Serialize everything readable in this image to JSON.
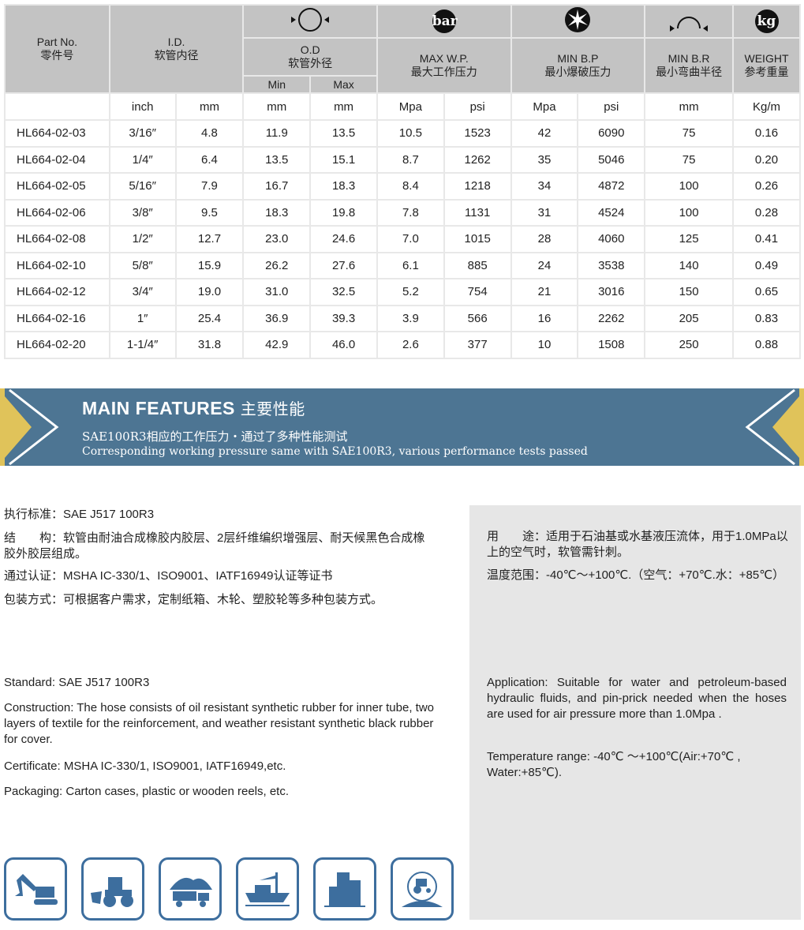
{
  "table": {
    "headers": {
      "part_no": "Part No.",
      "part_no_cn": "零件号",
      "id": "I.D.",
      "id_cn": "软管内径",
      "od": "O.D",
      "od_cn": "软管外径",
      "od_min": "Min",
      "od_max": "Max",
      "wp": "MAX W.P.",
      "wp_cn": "最大工作压力",
      "bp": "MIN B.P",
      "bp_cn": "最小爆破压力",
      "br": "MIN B.R",
      "br_cn": "最小弯曲半径",
      "weight": "WEIGHT",
      "weight_cn": "参考重量",
      "bar_icon_text": "bar",
      "kg_icon_text": "kg"
    },
    "units": [
      "",
      "inch",
      "mm",
      "mm",
      "mm",
      "Mpa",
      "psi",
      "Mpa",
      "psi",
      "mm",
      "Kg/m"
    ],
    "rows": [
      [
        "HL664-02-03",
        "3/16″",
        "4.8",
        "11.9",
        "13.5",
        "10.5",
        "1523",
        "42",
        "6090",
        "75",
        "0.16"
      ],
      [
        "HL664-02-04",
        "1/4″",
        "6.4",
        "13.5",
        "15.1",
        "8.7",
        "1262",
        "35",
        "5046",
        "75",
        "0.20"
      ],
      [
        "HL664-02-05",
        "5/16″",
        "7.9",
        "16.7",
        "18.3",
        "8.4",
        "1218",
        "34",
        "4872",
        "100",
        "0.26"
      ],
      [
        "HL664-02-06",
        "3/8″",
        "9.5",
        "18.3",
        "19.8",
        "7.8",
        "1131",
        "31",
        "4524",
        "100",
        "0.28"
      ],
      [
        "HL664-02-08",
        "1/2″",
        "12.7",
        "23.0",
        "24.6",
        "7.0",
        "1015",
        "28",
        "4060",
        "125",
        "0.41"
      ],
      [
        "HL664-02-10",
        "5/8″",
        "15.9",
        "26.2",
        "27.6",
        "6.1",
        "885",
        "24",
        "3538",
        "140",
        "0.49"
      ],
      [
        "HL664-02-12",
        "3/4″",
        "19.0",
        "31.0",
        "32.5",
        "5.2",
        "754",
        "21",
        "3016",
        "150",
        "0.65"
      ],
      [
        "HL664-02-16",
        "1″",
        "25.4",
        "36.9",
        "39.3",
        "3.9",
        "566",
        "16",
        "2262",
        "205",
        "0.83"
      ],
      [
        "HL664-02-20",
        "1-1/4″",
        "31.8",
        "42.9",
        "46.0",
        "2.6",
        "377",
        "10",
        "1508",
        "250",
        "0.88"
      ]
    ]
  },
  "banner": {
    "title": "MAIN FEATURES",
    "title_cn": "主要性能",
    "line_cn": "SAE100R3相应的工作压力・通过了多种性能测试",
    "line_en": "Corresponding working pressure same with SAE100R3, various performance tests passed"
  },
  "cn_left": [
    "执行标准：SAE J517 100R3",
    "结　　构：软管由耐油合成橡胶内胶层、2层纤维编织增强层、耐天候黑色合成橡胶外胶层组成。",
    "通过认证：MSHA IC-330/1、ISO9001、IATF16949认证等证书",
    "包装方式：可根据客户需求，定制纸箱、木轮、塑胶轮等多种包装方式。"
  ],
  "cn_right": [
    "用　　途：适用于石油基或水基液压流体，用于1.0MPa以上的空气时，软管需针刺。",
    "温度范围：-40℃～+100℃.（空气：+70℃.水：+85℃）"
  ],
  "en_left": [
    "Standard: SAE J517 100R3",
    "Construction: The hose consists of oil resistant synthetic rubber for inner tube, two layers of textile for the reinforcement, and weather resistant synthetic black rubber for cover.",
    "Certificate: MSHA IC-330/1,  ISO9001, IATF16949,etc.",
    "Packaging: Carton cases, plastic or wooden reels, etc."
  ],
  "en_right": [
    "Application: Suitable for water and petroleum-based hydraulic fluids, and pin-prick needed when the hoses are used for air pressure more than 1.0Mpa .",
    "Temperature range: -40℃ ～+100℃(Air:+70℃ , Water:+85℃)."
  ],
  "application_icons": [
    "excavator-icon",
    "wheel-loader-icon",
    "mining-truck-icon",
    "ship-icon",
    "building-icon",
    "agriculture-tractor-icon"
  ],
  "colors": {
    "banner": "#4d7593",
    "accent": "#e0c35a",
    "icon_border": "#3d6e9e",
    "header_bg": "#c3c3c3"
  }
}
